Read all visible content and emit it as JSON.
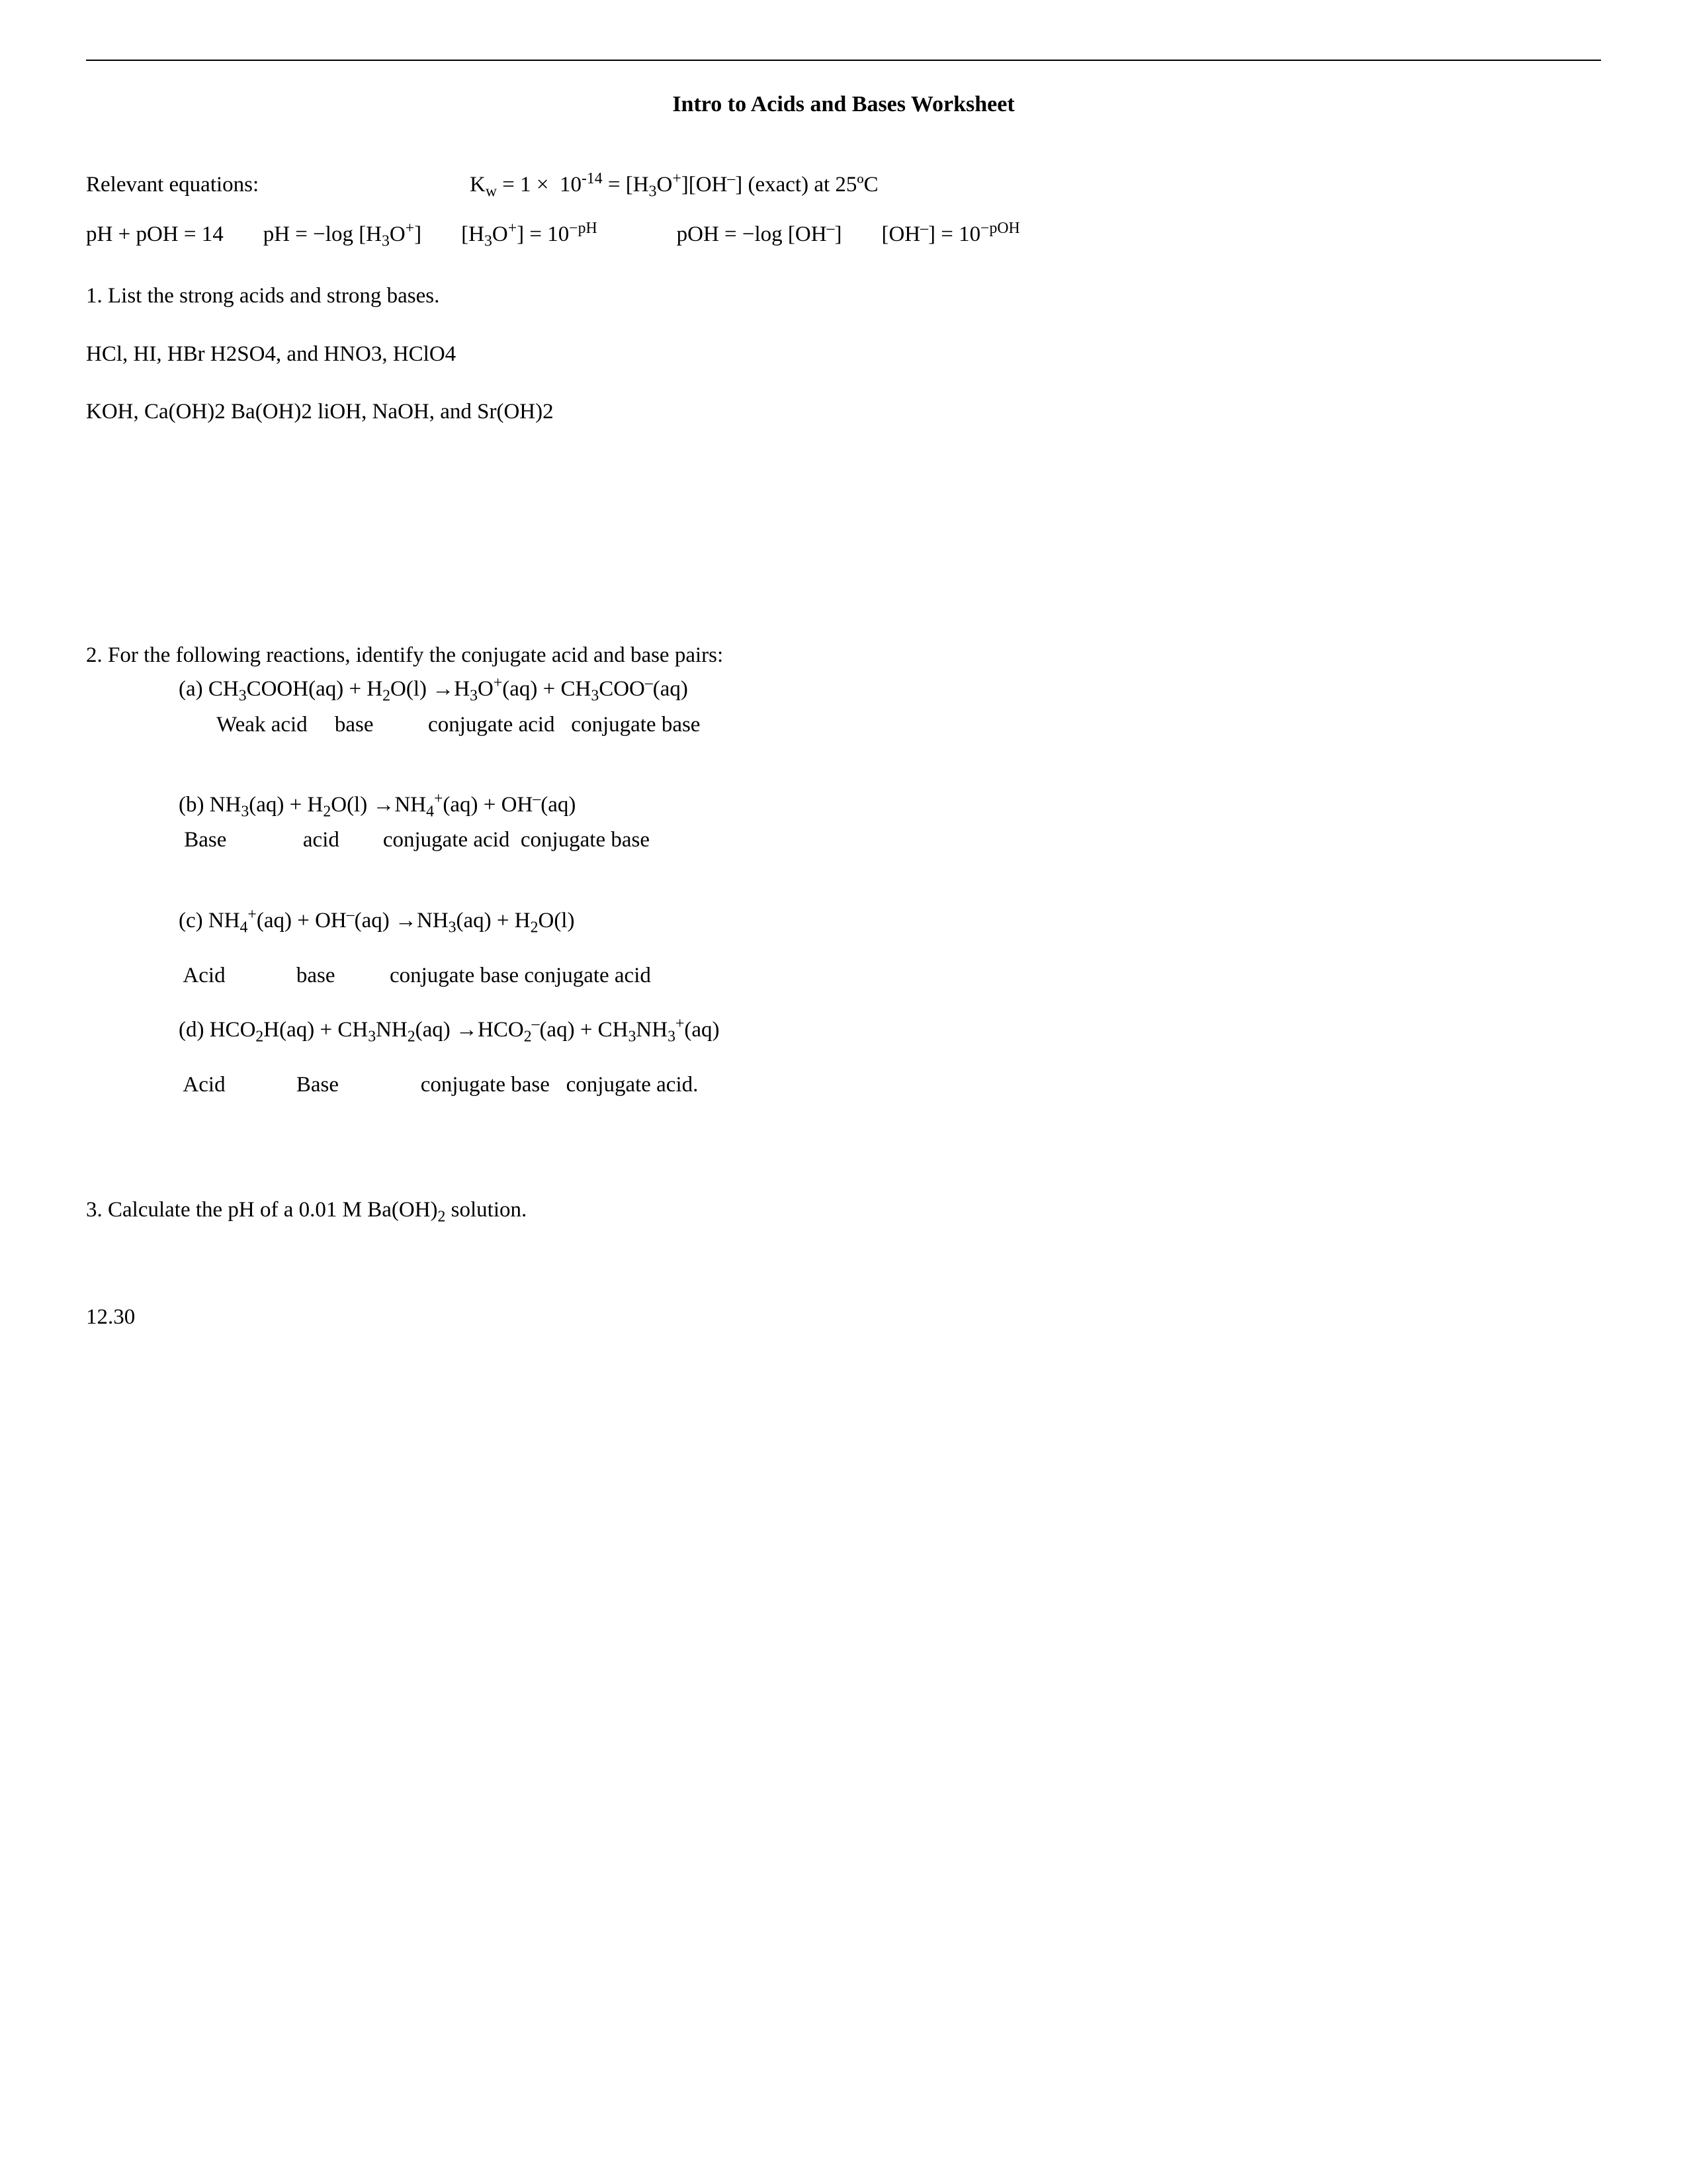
{
  "title": "Intro to Acids and Bases Worksheet",
  "releq_label": "Relevant equations:",
  "kw_eq_html": "K<sub>w</sub> = 1 × &nbsp;10<sup>-14</sup> = [H<sub>3</sub>O<sup>+</sup>][OH<sup>&#8211;</sup>] (exact) at 25ºC",
  "eqs": [
    "pH + pOH = 14",
    "pH = &#8722;log [H<sub>3</sub>O<sup>+</sup>]",
    "[H<sub>3</sub>O<sup>+</sup>] = 10<sup>&#8722;pH</sup>",
    "pOH = &#8722;log [OH<sup>&#8211;</sup>]",
    "[OH<sup>&#8211;</sup>] = 10<sup>&#8722;pOH</sup>"
  ],
  "q1": {
    "prompt": "1.  List the strong acids and strong bases.",
    "acids": "HCl, HI, HBr H2SO4, and HNO3, HClO4",
    "bases": "KOH, Ca(OH)2 Ba(OH)2 liOH, NaOH, and Sr(OH)2"
  },
  "q2": {
    "prompt": "2.  For the following reactions, identify the conjugate acid and base pairs:",
    "a_rxn_html": "(a) CH<sub>3</sub>COOH(aq) + H<sub>2</sub>O(l) &#8594;H<sub>3</sub>O<sup>+</sup>(aq) + CH<sub>3</sub>COO<sup>&#8211;</sup>(aq)",
    "a_lbl": "       Weak acid     base          conjugate acid   conjugate base",
    "b_rxn_html": "(b) NH<sub>3</sub>(aq) + H<sub>2</sub>O(l) &#8594;NH<sub>4</sub><sup>+</sup>(aq) + OH<sup>&#8211;</sup>(aq)",
    "b_lbl": " Base              acid        conjugate acid  conjugate base",
    "c_rxn_html": "(c) NH<sub>4</sub><sup>+</sup>(aq) + OH<sup>&#8211;</sup>(aq) &#8594;NH<sub>3</sub>(aq) + H<sub>2</sub>O(l)",
    "c_lbl": " Acid             base          conjugate base conjugate acid",
    "d_rxn_html": "(d) HCO<sub>2</sub>H(aq) + CH<sub>3</sub>NH<sub>2</sub>(aq) &#8594;HCO<sub>2</sub><sup>&#8211;</sup>(aq) + CH<sub>3</sub>NH<sub>3</sub><sup>+</sup>(aq)",
    "d_lbl": " Acid             Base               conjugate base   conjugate acid."
  },
  "q3": {
    "prompt_html": "3.  Calculate the pH of a 0.01 M Ba(OH)<sub>2</sub> solution.",
    "answer": "12.30"
  }
}
